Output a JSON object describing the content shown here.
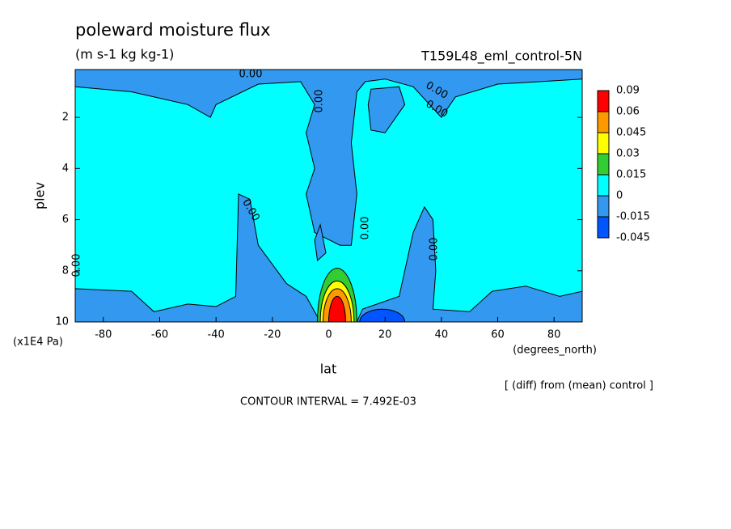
{
  "chart_data": {
    "type": "contour",
    "title": "poleward moisture flux",
    "subtitle": "(m s-1 kg kg-1)",
    "dataset": "T159L48_eml_control-5N",
    "x_label": "lat",
    "x_units": "(degrees_north)",
    "y_label": "plev",
    "y_units": "(x1E4 Pa)",
    "note": "[ (diff) from (mean) control ]",
    "contour_interval": "CONTOUR INTERVAL = 7.492E-03",
    "xlim": [
      -90,
      90
    ],
    "xticks": [
      -80,
      -60,
      -40,
      -20,
      0,
      20,
      40,
      60,
      80
    ],
    "ylim": [
      10,
      0.13
    ],
    "yticks": [
      2,
      4,
      6,
      8,
      10
    ],
    "levels": [
      0.09,
      0.06,
      0.045,
      0.03,
      0.015,
      0,
      -0.015,
      -0.045
    ],
    "level_colors": [
      "#ff0000",
      "#ff9900",
      "#ffff00",
      "#33cc33",
      "#00ffff",
      "#3399f0",
      "#0055ff"
    ],
    "contour_labels": [
      "0.00",
      "0.00",
      "0.00",
      "0.00",
      "0.00",
      "0.00",
      "0.00",
      "0.00"
    ]
  }
}
